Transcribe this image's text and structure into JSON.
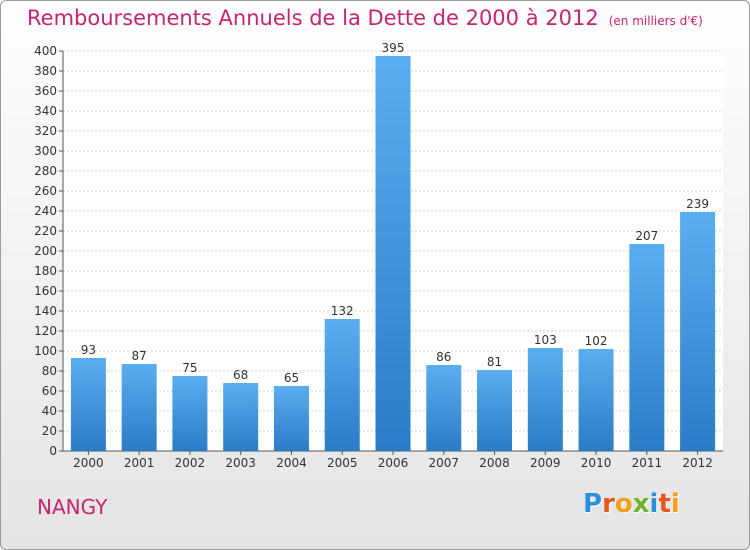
{
  "header": {
    "title": "Remboursements Annuels de la Dette de 2000 à 2012",
    "unit": "(en milliers d'€)"
  },
  "footer": {
    "place": "NANGY",
    "logo_letters": [
      {
        "ch": "P",
        "color": "#2f8fd8"
      },
      {
        "ch": "r",
        "color": "#e8571e"
      },
      {
        "ch": "o",
        "color": "#f0a01c"
      },
      {
        "ch": "x",
        "color": "#6fb630"
      },
      {
        "ch": "i",
        "color": "#2f8fd8"
      },
      {
        "ch": "t",
        "color": "#e8571e"
      },
      {
        "ch": "i",
        "color": "#f0a01c"
      }
    ]
  },
  "colors": {
    "bar_light": "#5aaef0",
    "bar_dark": "#2a7cc6",
    "grid": "#cfcfcf",
    "axis": "#555555"
  },
  "chart_data": {
    "type": "bar",
    "categories": [
      "2000",
      "2001",
      "2002",
      "2003",
      "2004",
      "2005",
      "2006",
      "2007",
      "2008",
      "2009",
      "2010",
      "2011",
      "2012"
    ],
    "values": [
      93,
      87,
      75,
      68,
      65,
      132,
      395,
      86,
      81,
      103,
      102,
      207,
      239
    ],
    "ylim": [
      0,
      400
    ],
    "ytick_step": 20,
    "grid": true,
    "data_labels": true
  }
}
